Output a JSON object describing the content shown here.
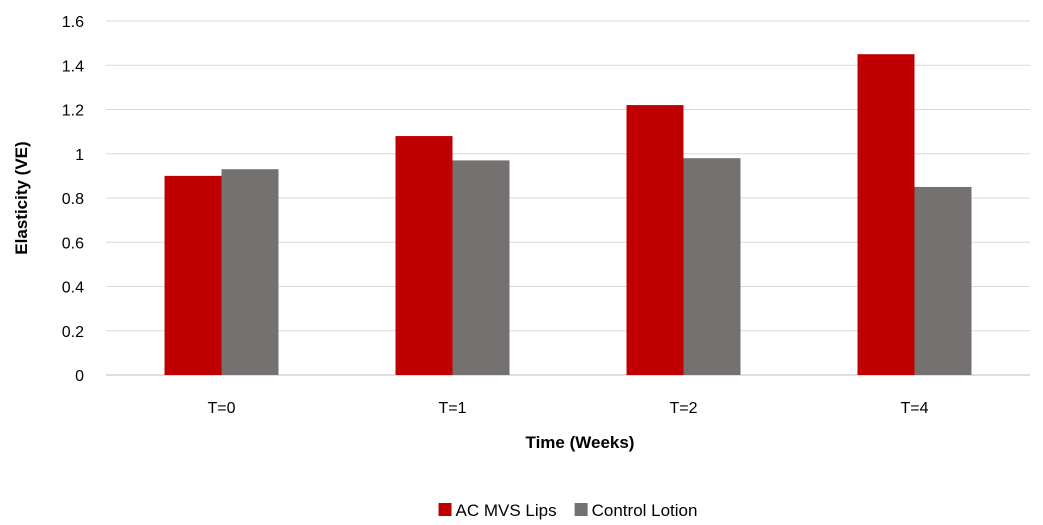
{
  "chart_data": {
    "type": "bar",
    "title": "",
    "xlabel": "Time (Weeks)",
    "ylabel": "Elasticity (VE)",
    "categories": [
      "T=0",
      "T=1",
      "T=2",
      "T=4"
    ],
    "series": [
      {
        "name": "AC MVS Lips",
        "color": "#c00000",
        "values": [
          0.9,
          1.08,
          1.22,
          1.45
        ]
      },
      {
        "name": "Control Lotion",
        "color": "#767171",
        "values": [
          0.93,
          0.97,
          0.98,
          0.85
        ]
      }
    ],
    "ylim": [
      0,
      1.6
    ],
    "yticks": [
      "0",
      "0.2",
      "0.4",
      "0.6",
      "0.8",
      "1",
      "1.2",
      "1.4",
      "1.6"
    ],
    "grid": true,
    "legend_position": "bottom"
  }
}
